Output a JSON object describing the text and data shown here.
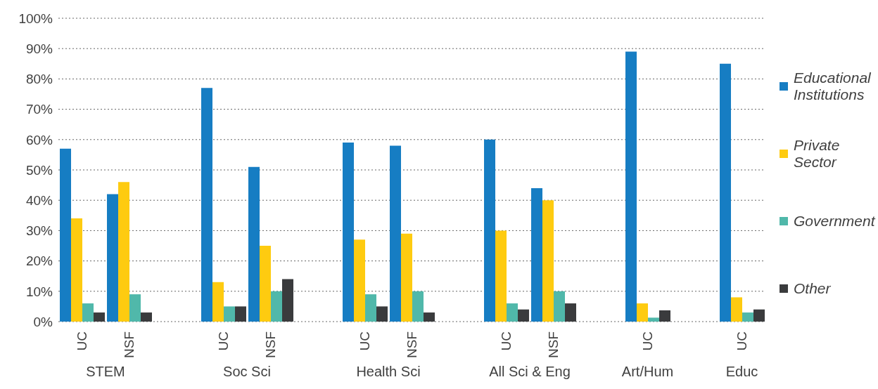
{
  "chart_data": {
    "type": "bar",
    "categories": [
      "UC",
      "NSF",
      null,
      "UC",
      "NSF",
      null,
      "UC",
      "NSF",
      null,
      "UC",
      "NSF",
      null,
      "UC",
      null,
      "UC"
    ],
    "series": [
      {
        "name": "Educational Institutions",
        "color": "#167dc3",
        "values": [
          57,
          42,
          null,
          77,
          51,
          null,
          59,
          58,
          null,
          60,
          44,
          null,
          89,
          null,
          85
        ]
      },
      {
        "name": "Private Sector",
        "color": "#fecb10",
        "values": [
          34,
          46,
          null,
          13,
          25,
          null,
          27,
          29,
          null,
          30,
          40,
          null,
          6,
          null,
          8
        ]
      },
      {
        "name": "Government",
        "color": "#50b8aa",
        "values": [
          6,
          9,
          null,
          5,
          10,
          null,
          9,
          10,
          null,
          6,
          10,
          null,
          1.3,
          null,
          3
        ]
      },
      {
        "name": "Other",
        "color": "#3a3b3d",
        "values": [
          3,
          3,
          null,
          5,
          14,
          null,
          5,
          3,
          null,
          4,
          6,
          null,
          3.7,
          null,
          4
        ]
      }
    ],
    "annotations": [
      "STEM",
      "Soc Sci",
      "Health Sci",
      "All Sci & Eng",
      "Art/Hum",
      "Educ"
    ],
    "ylim": [
      0,
      100
    ],
    "yticks": [
      {
        "value": 0,
        "label": "0%"
      },
      {
        "value": 10,
        "label": "10%"
      },
      {
        "value": 20,
        "label": "20%"
      },
      {
        "value": 30,
        "label": "30%"
      },
      {
        "value": 40,
        "label": "40%"
      },
      {
        "value": 50,
        "label": "50%"
      },
      {
        "value": 60,
        "label": "60%"
      },
      {
        "value": 70,
        "label": "70%"
      },
      {
        "value": 80,
        "label": "80%"
      },
      {
        "value": 90,
        "label": "90%"
      },
      {
        "value": 100,
        "label": "100%"
      }
    ],
    "grid": "y",
    "legend": "right"
  }
}
